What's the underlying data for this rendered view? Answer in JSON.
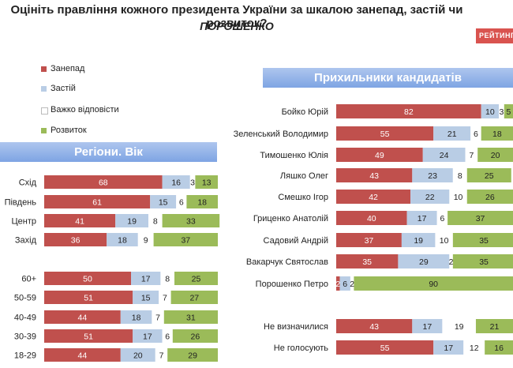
{
  "title": "Оцініть правління кожного президента України за шкалою занепад, застій чи розвиток?",
  "subtitle": "ПОРОШЕНКО",
  "logo_text": "РЕЙТИНГ",
  "colors": {
    "decline": "#c0504d",
    "stagnation": "#b9cde5",
    "hard_to_say": "#ffffff",
    "development": "#9bbb59"
  },
  "legend": [
    {
      "label": "Занепад",
      "color": "#c0504d"
    },
    {
      "label": "Застій",
      "color": "#b9cde5"
    },
    {
      "label": "Важко відповісти",
      "color": "#ffffff"
    },
    {
      "label": "Розвиток",
      "color": "#9bbb59"
    }
  ],
  "chart_data": [
    {
      "type": "bar",
      "orientation": "horizontal",
      "stacked": true,
      "title": "Регіони. Вік",
      "series_names": [
        "Занепад",
        "Застій",
        "Важко відповісти",
        "Розвиток"
      ],
      "rows": [
        {
          "label": "Схід",
          "values": [
            68,
            16,
            3,
            13
          ]
        },
        {
          "label": "Південь",
          "values": [
            61,
            15,
            6,
            18
          ]
        },
        {
          "label": "Центр",
          "values": [
            41,
            19,
            8,
            33
          ]
        },
        {
          "label": "Захід",
          "values": [
            36,
            18,
            9,
            37
          ]
        },
        {
          "label": "60+",
          "values": [
            50,
            17,
            8,
            25
          ]
        },
        {
          "label": "50-59",
          "values": [
            51,
            15,
            7,
            27
          ]
        },
        {
          "label": "40-49",
          "values": [
            44,
            18,
            7,
            31
          ]
        },
        {
          "label": "30-39",
          "values": [
            51,
            17,
            6,
            26
          ]
        },
        {
          "label": "18-29",
          "values": [
            44,
            20,
            7,
            29
          ]
        }
      ]
    },
    {
      "type": "bar",
      "orientation": "horizontal",
      "stacked": true,
      "title": "Прихильники кандидатів",
      "series_names": [
        "Занепад",
        "Застій",
        "Важко відповісти",
        "Розвиток"
      ],
      "rows": [
        {
          "label": "Бойко Юрій",
          "values": [
            82,
            10,
            3,
            5
          ]
        },
        {
          "label": "Зеленський Володимир",
          "values": [
            55,
            21,
            6,
            18
          ]
        },
        {
          "label": "Тимошенко Юлія",
          "values": [
            49,
            24,
            7,
            20
          ]
        },
        {
          "label": "Ляшко Олег",
          "values": [
            43,
            23,
            8,
            25
          ]
        },
        {
          "label": "Смешко Ігор",
          "values": [
            42,
            22,
            10,
            26
          ]
        },
        {
          "label": "Гриценко Анатолій",
          "values": [
            40,
            17,
            6,
            37
          ]
        },
        {
          "label": "Садовий Андрій",
          "values": [
            37,
            19,
            10,
            35
          ]
        },
        {
          "label": "Вакарчук Святослав",
          "values": [
            35,
            29,
            2,
            35
          ]
        },
        {
          "label": "Порошенко Петро",
          "values": [
            2,
            6,
            2,
            90
          ]
        },
        {
          "label": "Не визначилися",
          "values": [
            43,
            17,
            19,
            21
          ]
        },
        {
          "label": "Не голосують",
          "values": [
            55,
            17,
            12,
            16
          ]
        }
      ]
    }
  ]
}
